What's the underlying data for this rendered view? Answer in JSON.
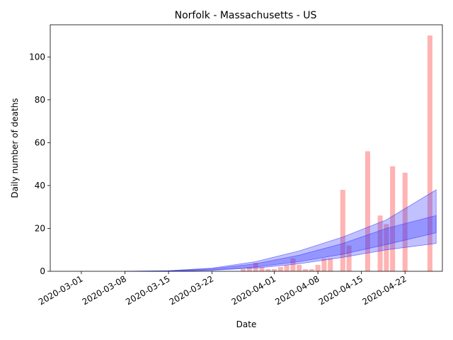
{
  "chart_data": {
    "type": "bar",
    "title": "Norfolk - Massachusetts - US",
    "xlabel": "Date",
    "ylabel": "Daily number of deaths",
    "ylim": [
      0,
      115
    ],
    "xlim": [
      "2020-02-25",
      "2020-04-28"
    ],
    "yticks": [
      0,
      20,
      40,
      60,
      80,
      100
    ],
    "xticks": [
      "2020-03-01",
      "2020-03-08",
      "2020-03-15",
      "2020-03-22",
      "2020-04-01",
      "2020-04-08",
      "2020-04-15",
      "2020-04-22"
    ],
    "grid": false,
    "legend": "none",
    "bar_color": "#ff9999",
    "band_color": "#3333ff",
    "bars": [
      {
        "date": "2020-03-27",
        "value": 1
      },
      {
        "date": "2020-03-28",
        "value": 2
      },
      {
        "date": "2020-03-29",
        "value": 4
      },
      {
        "date": "2020-03-30",
        "value": 2
      },
      {
        "date": "2020-03-31",
        "value": 1
      },
      {
        "date": "2020-04-01",
        "value": 1
      },
      {
        "date": "2020-04-02",
        "value": 2
      },
      {
        "date": "2020-04-03",
        "value": 3
      },
      {
        "date": "2020-04-04",
        "value": 6
      },
      {
        "date": "2020-04-05",
        "value": 3
      },
      {
        "date": "2020-04-06",
        "value": 1
      },
      {
        "date": "2020-04-07",
        "value": 1
      },
      {
        "date": "2020-04-08",
        "value": 3
      },
      {
        "date": "2020-04-09",
        "value": 6
      },
      {
        "date": "2020-04-10",
        "value": 6
      },
      {
        "date": "2020-04-12",
        "value": 38
      },
      {
        "date": "2020-04-13",
        "value": 12
      },
      {
        "date": "2020-04-16",
        "value": 56
      },
      {
        "date": "2020-04-18",
        "value": 26
      },
      {
        "date": "2020-04-19",
        "value": 22
      },
      {
        "date": "2020-04-20",
        "value": 49
      },
      {
        "date": "2020-04-22",
        "value": 46
      },
      {
        "date": "2020-04-26",
        "value": 110
      }
    ],
    "bands": [
      {
        "name": "outer",
        "opacity": 0.3,
        "points": [
          {
            "date": "2020-03-08",
            "lower": 0,
            "upper": 0
          },
          {
            "date": "2020-03-15",
            "lower": 0,
            "upper": 0.3
          },
          {
            "date": "2020-03-22",
            "lower": 0.5,
            "upper": 1.5
          },
          {
            "date": "2020-03-29",
            "lower": 1.5,
            "upper": 4.5
          },
          {
            "date": "2020-04-05",
            "lower": 3.5,
            "upper": 9.5
          },
          {
            "date": "2020-04-12",
            "lower": 6.5,
            "upper": 16
          },
          {
            "date": "2020-04-19",
            "lower": 10,
            "upper": 24
          },
          {
            "date": "2020-04-27",
            "lower": 13,
            "upper": 38
          }
        ]
      },
      {
        "name": "inner",
        "opacity": 0.3,
        "points": [
          {
            "date": "2020-03-08",
            "lower": 0,
            "upper": 0
          },
          {
            "date": "2020-03-15",
            "lower": 0,
            "upper": 0.2
          },
          {
            "date": "2020-03-22",
            "lower": 0.6,
            "upper": 1.2
          },
          {
            "date": "2020-03-29",
            "lower": 2,
            "upper": 3.5
          },
          {
            "date": "2020-04-05",
            "lower": 4.5,
            "upper": 7.5
          },
          {
            "date": "2020-04-12",
            "lower": 8,
            "upper": 13
          },
          {
            "date": "2020-04-19",
            "lower": 12.5,
            "upper": 20
          },
          {
            "date": "2020-04-27",
            "lower": 18,
            "upper": 26
          }
        ]
      }
    ]
  }
}
